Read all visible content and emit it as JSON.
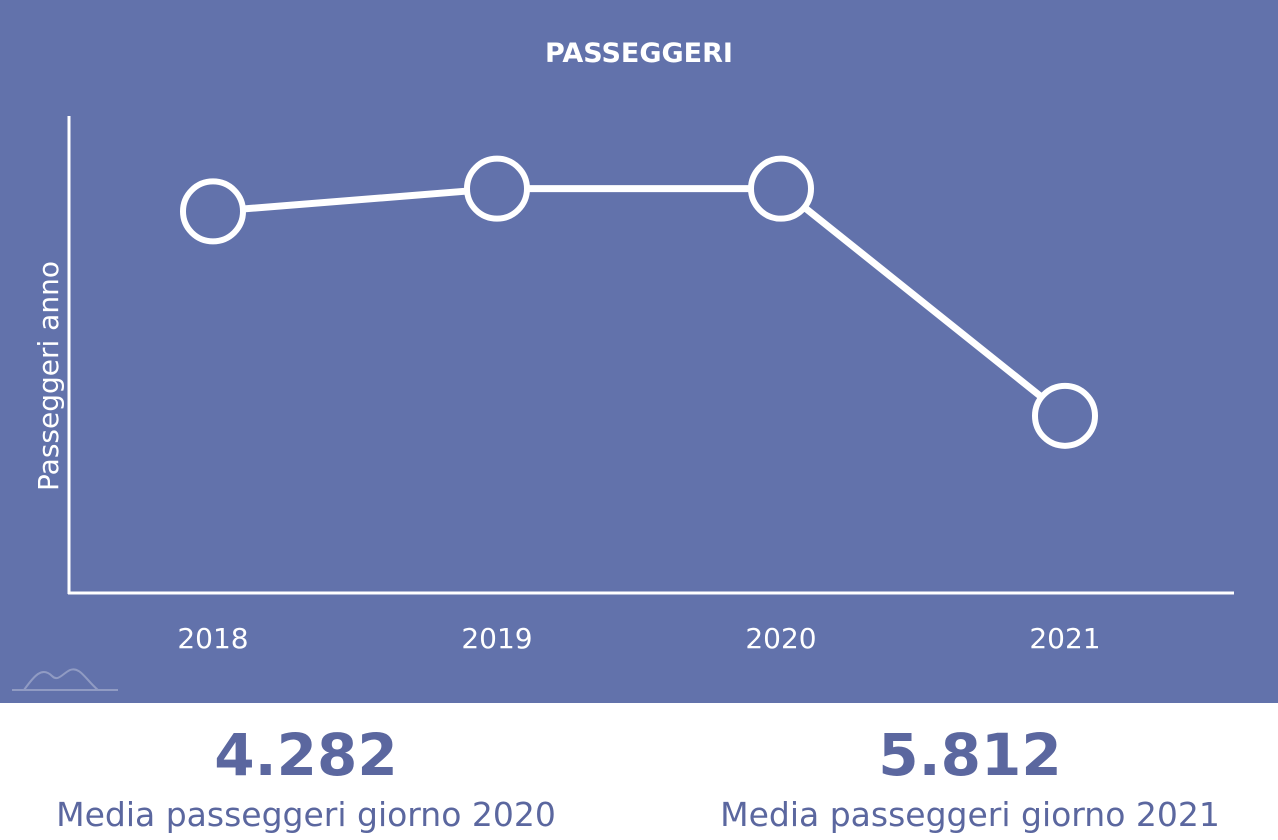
{
  "colors": {
    "panel_background": "#6272ab",
    "line": "#ffffff",
    "stat_text": "#5b679f"
  },
  "chart_data": {
    "type": "line",
    "title": "PASSEGGERI",
    "ylabel": "Passeggeri anno",
    "xlabel": "",
    "categories": [
      "2018",
      "2019",
      "2020",
      "2021"
    ],
    "values": [
      1.48,
      1.58,
      1.58,
      0.58
    ],
    "ylim": [
      -0.2,
      1.9
    ],
    "y_axis_tick_labels_shown": false,
    "grid": false,
    "legend": "none"
  },
  "stats": [
    {
      "value": "4.282",
      "label": "Media passeggeri giorno 2020"
    },
    {
      "value": "5.812",
      "label": "Media passeggeri giorno 2021"
    }
  ],
  "logo_icon": "mountain-logo-icon"
}
